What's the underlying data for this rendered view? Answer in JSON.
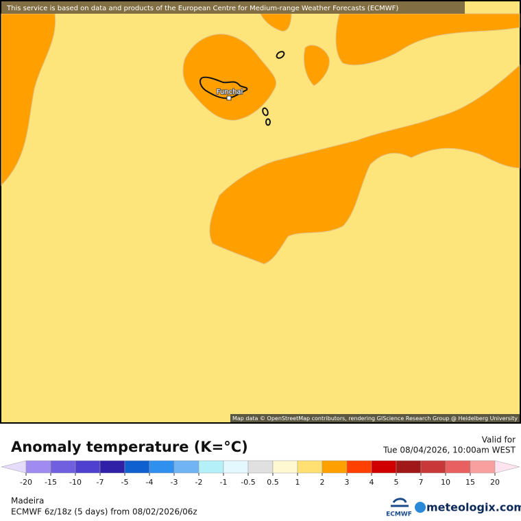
{
  "banner": "This service is based on data and products of the European Centre for Medium-range Weather Forecasts (ECMWF)",
  "map": {
    "city": "Funchal",
    "attribution": "Map data © OpenStreetMap contributors, rendering GIScience Research Group @ Heidelberg University"
  },
  "legend": {
    "title": "Anomaly temperature (K=°C)",
    "valid_label": "Valid for",
    "valid_time": "Tue 08/04/2026, 10:00am WEST",
    "ticks": [
      -20,
      -15,
      -10,
      -7,
      -5,
      -4,
      -3,
      -2,
      -1,
      -0.5,
      0.5,
      1,
      2,
      3,
      4,
      5,
      7,
      10,
      15,
      20
    ],
    "colors": [
      "#e4dcfa",
      "#a08cf0",
      "#7060e0",
      "#5040d0",
      "#3020a8",
      "#1060d0",
      "#3090f0",
      "#70b4f4",
      "#b4f0f8",
      "#e4f8ff",
      "#e0e0e0",
      "#fff8d0",
      "#ffe070",
      "#ffa000",
      "#ff4000",
      "#d00000",
      "#a01818",
      "#c83838",
      "#e86060",
      "#f8a0a0",
      "#ffe4f0"
    ]
  },
  "footer": {
    "region": "Madeira",
    "model": "ECMWF 6z/18z (5 days) from 08/02/2026/06z",
    "logo_left": "ECMWF",
    "logo_right": "meteologix.com"
  }
}
